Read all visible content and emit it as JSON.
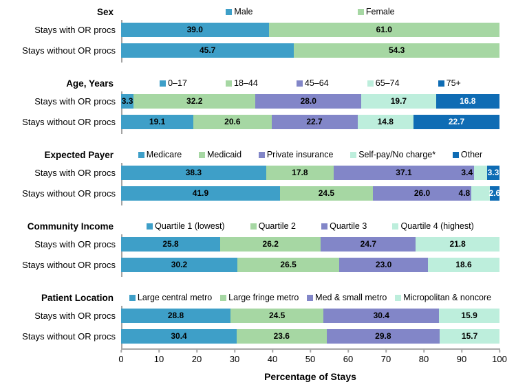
{
  "colors": {
    "series_blue": "#3E9FC8",
    "series_green": "#A6D7A3",
    "series_purple": "#8286C8",
    "series_mint": "#BDEEDC",
    "series_dark_blue": "#0F6CB4",
    "axis_gray": "#A6A6A6",
    "value_label_black": "#000000",
    "value_label_white": "#FFFFFF"
  },
  "chart_data": {
    "type": "bar",
    "stacked": true,
    "percent_stacked": true,
    "orientation": "horizontal",
    "xlabel": "Percentage of Stays",
    "xlim": [
      0,
      100
    ],
    "x_ticks": [
      "0",
      "10",
      "20",
      "30",
      "40",
      "50",
      "60",
      "70",
      "80",
      "90",
      "100"
    ],
    "grid": false,
    "legend_position": "top-of-each-section",
    "sections": [
      {
        "title": "Sex",
        "categories": [
          "Male",
          "Female"
        ],
        "colors": [
          "#3E9FC8",
          "#A6D7A3"
        ],
        "rows": [
          {
            "label": "Stays with OR procs",
            "values": [
              39.0,
              61.0
            ],
            "labels": [
              "39.0",
              "61.0"
            ]
          },
          {
            "label": "Stays without OR procs",
            "values": [
              45.7,
              54.3
            ],
            "labels": [
              "45.7",
              "54.3"
            ]
          }
        ]
      },
      {
        "title": "Age, Years",
        "categories": [
          "0–17",
          "18–44",
          "45–64",
          "65–74",
          "75+"
        ],
        "colors": [
          "#3E9FC8",
          "#A6D7A3",
          "#8286C8",
          "#BDEEDC",
          "#0F6CB4"
        ],
        "rows": [
          {
            "label": "Stays with OR procs",
            "values": [
              3.3,
              32.2,
              28.0,
              19.7,
              16.8
            ],
            "labels": [
              "3.3",
              "32.2",
              "28.0",
              "19.7",
              "16.8"
            ]
          },
          {
            "label": "Stays without OR procs",
            "values": [
              19.1,
              20.6,
              22.7,
              14.8,
              22.7
            ],
            "labels": [
              "19.1",
              "20.6",
              "22.7",
              "14.8",
              "22.7"
            ]
          }
        ]
      },
      {
        "title": "Expected Payer",
        "categories": [
          "Medicare",
          "Medicaid",
          "Private insurance",
          "Self-pay/No charge*",
          "Other"
        ],
        "colors": [
          "#3E9FC8",
          "#A6D7A3",
          "#8286C8",
          "#BDEEDC",
          "#0F6CB4"
        ],
        "rows": [
          {
            "label": "Stays with OR procs",
            "values": [
              38.3,
              17.8,
              37.1,
              3.4,
              3.3
            ],
            "labels": [
              "38.3",
              "17.8",
              "37.1",
              "3.4",
              "3.3"
            ],
            "label_placement": [
              "in",
              "in",
              "in",
              "out",
              "in"
            ]
          },
          {
            "label": "Stays without OR procs",
            "values": [
              41.9,
              24.5,
              26.0,
              4.8,
              2.6
            ],
            "labels": [
              "41.9",
              "24.5",
              "26.0",
              "4.8",
              "2.6"
            ],
            "label_placement": [
              "in",
              "in",
              "in",
              "out",
              "in"
            ]
          }
        ]
      },
      {
        "title": "Community Income",
        "categories": [
          "Quartile 1 (lowest)",
          "Quartile 2",
          "Quartile 3",
          "Quartile 4 (highest)"
        ],
        "colors": [
          "#3E9FC8",
          "#A6D7A3",
          "#8286C8",
          "#BDEEDC"
        ],
        "rows": [
          {
            "label": "Stays with OR procs",
            "values": [
              25.8,
              26.2,
              24.7,
              21.8
            ],
            "labels": [
              "25.8",
              "26.2",
              "24.7",
              "21.8"
            ]
          },
          {
            "label": "Stays without OR procs",
            "values": [
              30.2,
              26.5,
              23.0,
              18.6
            ],
            "labels": [
              "30.2",
              "26.5",
              "23.0",
              "18.6"
            ]
          }
        ]
      },
      {
        "title": "Patient Location",
        "categories": [
          "Large central metro",
          "Large fringe metro",
          "Med & small metro",
          "Micropolitan & noncore"
        ],
        "colors": [
          "#3E9FC8",
          "#A6D7A3",
          "#8286C8",
          "#BDEEDC"
        ],
        "rows": [
          {
            "label": "Stays with OR procs",
            "values": [
              28.8,
              24.5,
              30.4,
              15.9
            ],
            "labels": [
              "28.8",
              "24.5",
              "30.4",
              "15.9"
            ]
          },
          {
            "label": "Stays without OR procs",
            "values": [
              30.4,
              23.6,
              29.8,
              15.7
            ],
            "labels": [
              "30.4",
              "23.6",
              "29.8",
              "15.7"
            ]
          }
        ]
      }
    ]
  }
}
